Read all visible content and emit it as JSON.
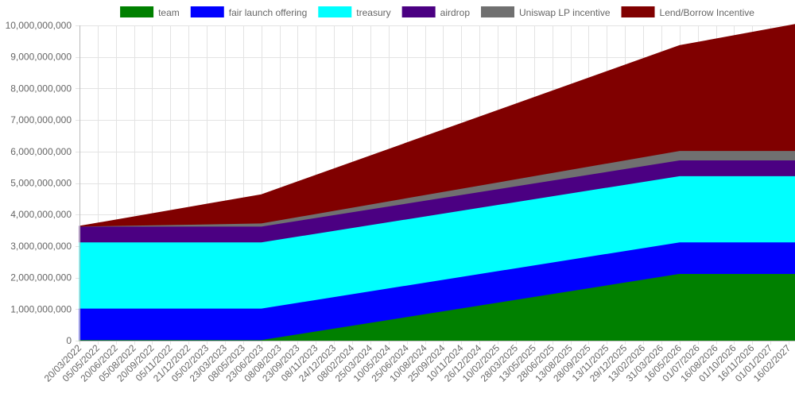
{
  "chart_data": {
    "type": "area",
    "stacked": true,
    "grid": true,
    "legend_position": "top",
    "title": "",
    "xlabel": "",
    "ylabel": "",
    "ylim": [
      0,
      10000000000
    ],
    "y_ticks": [
      0,
      1000000000,
      2000000000,
      3000000000,
      4000000000,
      5000000000,
      6000000000,
      7000000000,
      8000000000,
      9000000000,
      10000000000
    ],
    "y_tick_labels": [
      "0",
      "1,000,000,000",
      "2,000,000,000",
      "3,000,000,000",
      "4,000,000,000",
      "5,000,000,000",
      "6,000,000,000",
      "7,000,000,000",
      "8,000,000,000",
      "9,000,000,000",
      "10,000,000,000"
    ],
    "xlim": [
      "2022-03-20",
      "2027-03-04"
    ],
    "x_ticks": [
      "2022-03-20",
      "2022-05-05",
      "2022-06-20",
      "2022-08-05",
      "2022-09-20",
      "2022-11-05",
      "2022-12-21",
      "2023-02-05",
      "2023-03-23",
      "2023-05-08",
      "2023-06-23",
      "2023-08-08",
      "2023-09-23",
      "2023-11-08",
      "2023-12-24",
      "2024-02-08",
      "2024-03-25",
      "2024-05-10",
      "2024-06-25",
      "2024-08-10",
      "2024-09-25",
      "2024-11-10",
      "2024-12-26",
      "2025-02-10",
      "2025-03-28",
      "2025-05-13",
      "2025-06-28",
      "2025-08-13",
      "2025-09-28",
      "2025-11-13",
      "2025-12-29",
      "2026-02-13",
      "2026-03-31",
      "2026-05-16",
      "2026-07-01",
      "2026-08-16",
      "2026-10-01",
      "2026-11-16",
      "2027-01-01",
      "2027-02-16"
    ],
    "x_tick_labels": [
      "20/03/2022",
      "05/05/2022",
      "20/06/2022",
      "05/08/2022",
      "20/09/2022",
      "05/11/2022",
      "21/12/2022",
      "05/02/2023",
      "23/03/2023",
      "08/05/2023",
      "23/06/2023",
      "08/08/2023",
      "23/09/2023",
      "08/11/2023",
      "24/12/2023",
      "08/02/2024",
      "25/03/2024",
      "10/05/2024",
      "25/06/2024",
      "10/08/2024",
      "25/09/2024",
      "10/11/2024",
      "26/12/2024",
      "10/02/2025",
      "28/03/2025",
      "13/05/2025",
      "28/06/2025",
      "13/08/2025",
      "28/09/2025",
      "13/11/2025",
      "29/12/2025",
      "13/02/2026",
      "31/03/2026",
      "16/05/2026",
      "01/07/2026",
      "16/08/2026",
      "01/10/2026",
      "16/11/2026",
      "01/01/2027",
      "16/02/2027"
    ],
    "x": [
      "2022-03-20",
      "2023-06-23",
      "2026-05-16",
      "2027-03-04"
    ],
    "series": [
      {
        "name": "team",
        "color": "#008000",
        "values": [
          30000000,
          30000000,
          2130000000,
          2130000000
        ]
      },
      {
        "name": "fair launch offering",
        "color": "#0000ff",
        "values": [
          1000000000,
          1000000000,
          1000000000,
          1000000000
        ]
      },
      {
        "name": "treasury",
        "color": "#00ffff",
        "values": [
          2100000000,
          2100000000,
          2100000000,
          2100000000
        ]
      },
      {
        "name": "airdrop",
        "color": "#4b0082",
        "values": [
          500000000,
          500000000,
          500000000,
          500000000
        ]
      },
      {
        "name": "Uniswap LP incentive",
        "color": "#707070",
        "values": [
          0,
          100000000,
          300000000,
          300000000
        ]
      },
      {
        "name": "Lend/Borrow Incentive",
        "color": "#800000",
        "values": [
          0,
          900000000,
          3330000000,
          4000000000
        ]
      }
    ]
  }
}
